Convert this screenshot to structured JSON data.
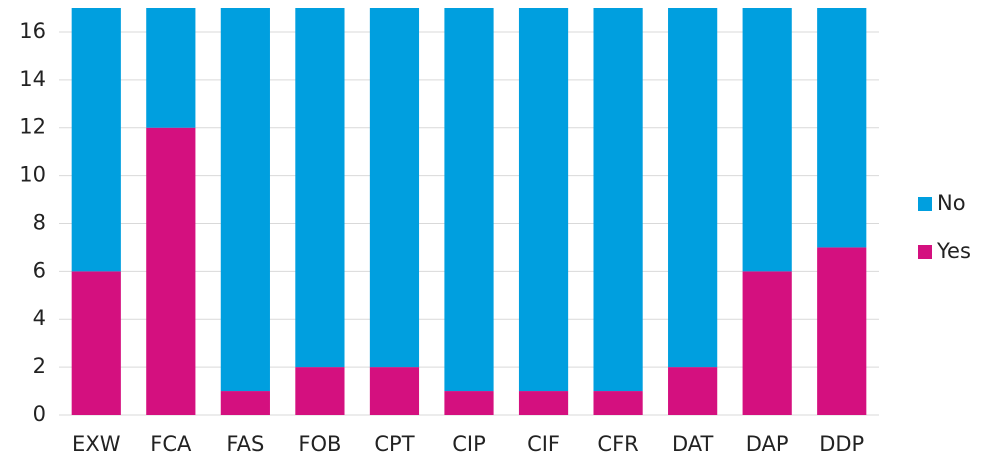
{
  "chart_data": {
    "type": "stacked_bar",
    "categories": [
      "EXW",
      "FCA",
      "FAS",
      "FOB",
      "CPT",
      "CIP",
      "CIF",
      "CFR",
      "DAT",
      "DAP",
      "DDP"
    ],
    "series": [
      {
        "name": "Yes",
        "color": "#d4107f",
        "values": [
          6,
          12,
          1,
          2,
          2,
          1,
          1,
          1,
          2,
          6,
          7
        ]
      },
      {
        "name": "No",
        "color": "#009fdf",
        "values": [
          11,
          5,
          16,
          15,
          15,
          16,
          16,
          16,
          15,
          11,
          10
        ]
      }
    ],
    "ylim": [
      0,
      17
    ],
    "yticks": [
      0,
      2,
      4,
      6,
      8,
      10,
      12,
      14,
      16
    ],
    "grid": true,
    "legend": "right"
  }
}
